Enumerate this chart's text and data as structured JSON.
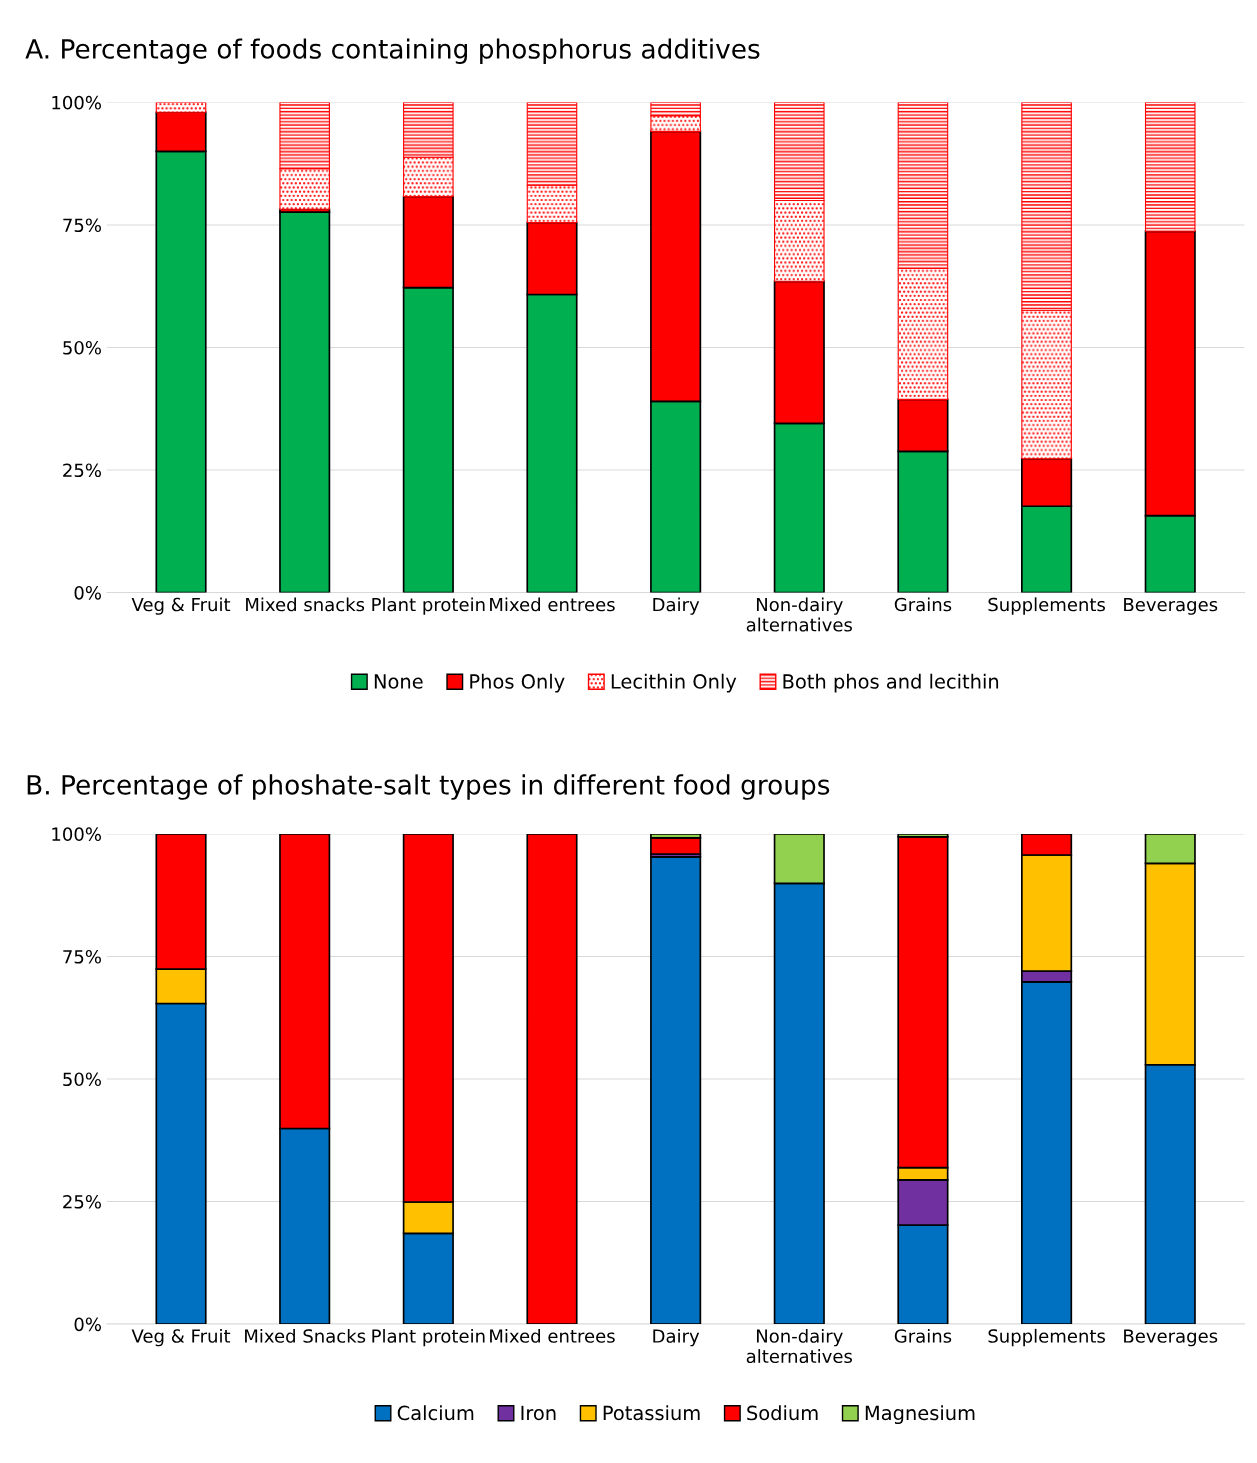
{
  "chart_data": [
    {
      "type": "bar",
      "title": "A. Percentage of foods containing phosphorus additives",
      "stacked": true,
      "categories": [
        "Veg & Fruit",
        "Mixed snacks",
        "Plant protein",
        "Mixed entrees",
        "Dairy",
        "Non-dairy\nalternatives",
        "Grains",
        "Supplements",
        "Beverages"
      ],
      "series": [
        {
          "name": "None",
          "color": "#00b050",
          "values": [
            90,
            77.6,
            62.2,
            60.8,
            39,
            34.5,
            28.8,
            17.6,
            15.7
          ]
        },
        {
          "name": "Phos Only",
          "color": "#ff0000",
          "values": [
            8,
            0.6,
            18.6,
            14.7,
            55.1,
            29,
            10.6,
            9.7,
            58
          ]
        },
        {
          "name": "Lecithin Only",
          "color": "#ff0000",
          "values": [
            2,
            8.3,
            8,
            7.6,
            3.2,
            16.5,
            26.7,
            30.3,
            0
          ]
        },
        {
          "name": "Both phos and lecithin",
          "color": "#ff0000",
          "values": [
            0,
            13.5,
            11.2,
            16.9,
            2.7,
            20,
            33.9,
            42.4,
            26.3
          ]
        }
      ],
      "ylim": [
        0,
        100
      ],
      "yticks": [
        {
          "value": 0,
          "label": "0%"
        },
        {
          "value": 25,
          "label": "25%"
        },
        {
          "value": 50,
          "label": "50%"
        },
        {
          "value": 75,
          "label": "75%"
        },
        {
          "value": 100,
          "label": "100%"
        }
      ],
      "grid": "y",
      "legend": "bottom"
    },
    {
      "type": "bar",
      "title": "B. Percentage of phoshate-salt types in different food groups",
      "stacked": true,
      "categories": [
        "Veg & Fruit",
        "Mixed Snacks",
        "Plant protein",
        "Mixed entrees",
        "Dairy",
        "Non-dairy\nalternatives",
        "Grains",
        "Supplements",
        "Beverages"
      ],
      "series": [
        {
          "name": "Calcium",
          "color": "#0070c0",
          "values": [
            65.4,
            39.9,
            18.5,
            0,
            95.3,
            89.9,
            20.2,
            69.8,
            52.9
          ]
        },
        {
          "name": "Iron",
          "color": "#7030a0",
          "values": [
            0,
            0,
            0,
            0,
            0.6,
            0,
            9.2,
            2.2,
            0
          ]
        },
        {
          "name": "Potassium",
          "color": "#ffc000",
          "values": [
            7,
            0,
            6.4,
            0,
            0,
            0,
            2.5,
            23.7,
            41.1
          ]
        },
        {
          "name": "Sodium",
          "color": "#ff0000",
          "values": [
            27.6,
            60.1,
            75.1,
            100,
            3.3,
            0,
            67.5,
            4.3,
            0
          ]
        },
        {
          "name": "Magnesium",
          "color": "#92d050",
          "values": [
            0,
            0,
            0,
            0,
            0.8,
            10.1,
            0.6,
            0,
            6
          ]
        }
      ],
      "ylim": [
        0,
        100
      ],
      "yticks": [
        {
          "value": 0,
          "label": "0%"
        },
        {
          "value": 25,
          "label": "25%"
        },
        {
          "value": 50,
          "label": "50%"
        },
        {
          "value": 75,
          "label": "75%"
        },
        {
          "value": 100,
          "label": "100%"
        }
      ],
      "grid": "y",
      "legend": "bottom"
    }
  ]
}
